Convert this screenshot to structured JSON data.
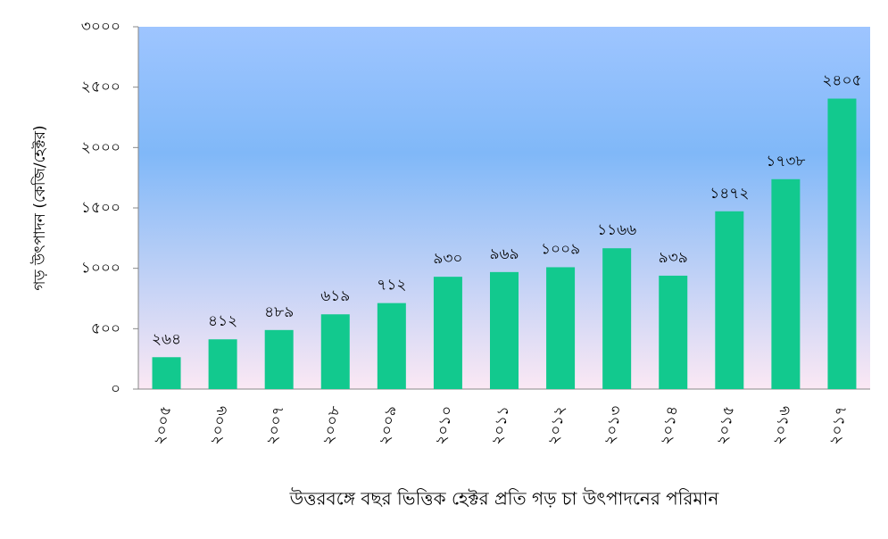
{
  "chart_data": {
    "type": "bar",
    "y_label": "গড় উৎপাদন (কেজি/হেক্টর)",
    "x_label": "উত্তরবঙ্গে বছর ভিত্তিক হেক্টর প্রতি গড় চা উৎপাদনের পরিমান",
    "categories": [
      "২০০৫",
      "২০০৬",
      "২০০৭",
      "২০০৮",
      "২০০৯",
      "২০১০",
      "২০১১",
      "২০১২",
      "২০১৩",
      "২০১৪",
      "২০১৫",
      "২০১৬",
      "২০১৭"
    ],
    "values": [
      264,
      412,
      489,
      619,
      712,
      930,
      969,
      1009,
      1166,
      939,
      1472,
      1738,
      2405
    ],
    "value_labels": [
      "২৬৪",
      "৪১২",
      "৪৮৯",
      "৬১৯",
      "৭১২",
      "৯৩০",
      "৯৬৯",
      "১০০৯",
      "১১৬৬",
      "৯৩৯",
      "১৪৭২",
      "১৭৩৮",
      "২৪০৫"
    ],
    "color": "#12c98e",
    "ylim": [
      0,
      3000
    ],
    "yticks": [
      {
        "value": 0,
        "label": "০"
      },
      {
        "value": 500,
        "label": "৫০০"
      },
      {
        "value": 1000,
        "label": "১০০০"
      },
      {
        "value": 1500,
        "label": "১৫০০"
      },
      {
        "value": 2000,
        "label": "২০০০"
      },
      {
        "value": 2500,
        "label": "২৫০০"
      },
      {
        "value": 3000,
        "label": "৩০০০"
      }
    ]
  }
}
